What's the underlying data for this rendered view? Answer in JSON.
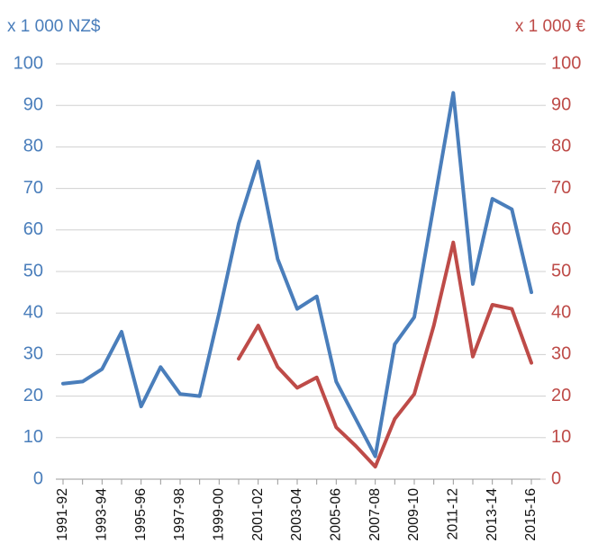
{
  "chart_data": {
    "type": "line",
    "y_label": "x 1 000 NZ$",
    "y2_label": "x 1 000 €",
    "categories": [
      "1991-92",
      null,
      "1993-94",
      null,
      "1995-96",
      null,
      "1997-98",
      null,
      "1999-00",
      null,
      "2001-02",
      null,
      "2003-04",
      null,
      "2005-06",
      null,
      "2007-08",
      null,
      "2009-10",
      null,
      "2011-12",
      null,
      "2013-14",
      null,
      "2015-16"
    ],
    "series": [
      {
        "name": "NZ$",
        "color": "#4a7ebb",
        "axis": "y",
        "values": [
          23,
          23.5,
          26.5,
          35.5,
          17.5,
          27,
          20.5,
          20,
          40,
          61.5,
          76.5,
          53,
          41,
          44,
          23.5,
          14.5,
          5.5,
          32.5,
          39,
          66,
          93,
          47,
          67.5,
          65,
          45
        ]
      },
      {
        "name": "€",
        "color": "#be4b48",
        "axis": "y2",
        "values": [
          null,
          null,
          null,
          null,
          null,
          null,
          null,
          null,
          null,
          29,
          37,
          27,
          22,
          24.5,
          12.5,
          8,
          3,
          14.5,
          20.5,
          37,
          57,
          29.5,
          42,
          41,
          28
        ]
      }
    ],
    "ylim": [
      0,
      100
    ],
    "yticks": [
      0,
      10,
      20,
      30,
      40,
      50,
      60,
      70,
      80,
      90,
      100
    ],
    "y2lim": [
      0,
      100
    ],
    "y2ticks": [
      0,
      10,
      20,
      30,
      40,
      50,
      60,
      70,
      80,
      90,
      100
    ],
    "grid": true
  }
}
